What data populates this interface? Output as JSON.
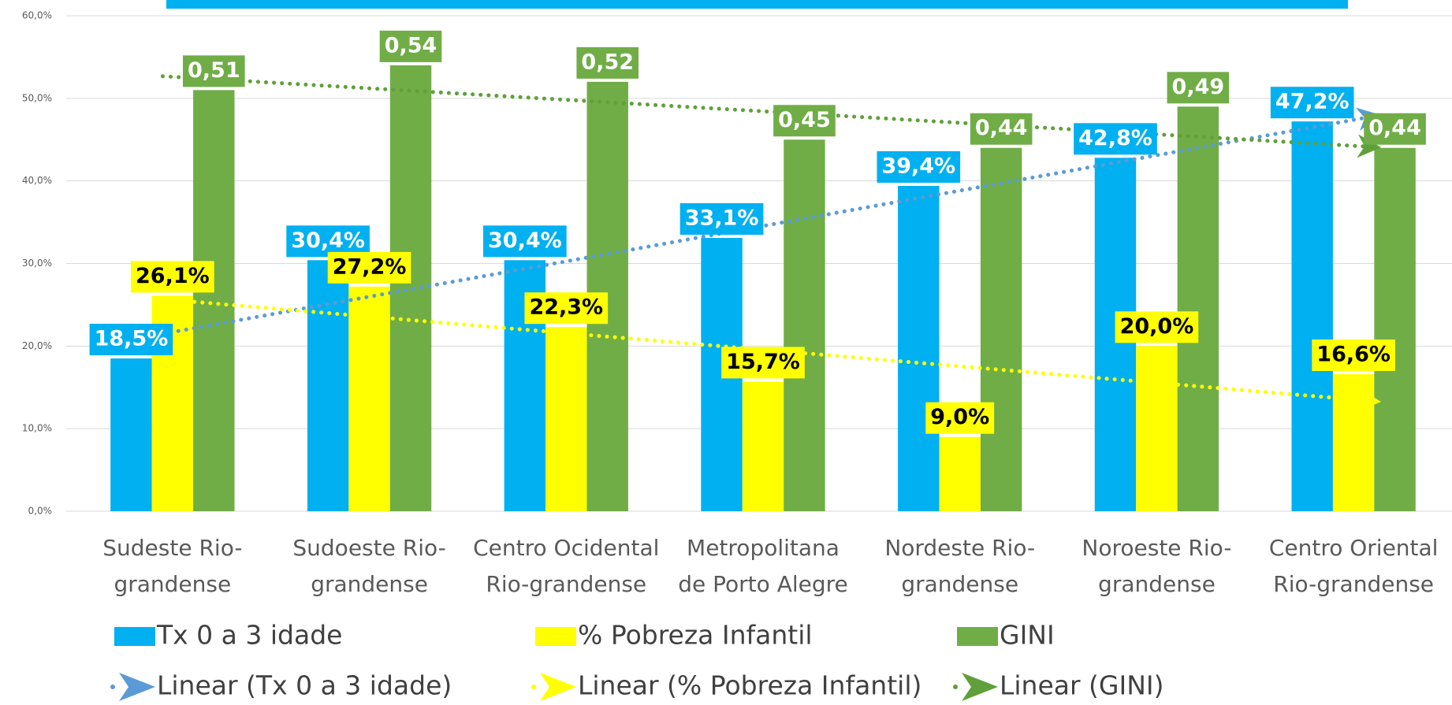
{
  "chart_data": {
    "type": "bar",
    "categories": [
      [
        "Sudeste Rio-",
        "grandense"
      ],
      [
        "Sudoeste Rio-",
        "grandense"
      ],
      [
        "Centro Ocidental",
        "Rio-grandense"
      ],
      [
        "Metropolitana",
        "de Porto Alegre"
      ],
      [
        "Nordeste Rio-",
        "grandense"
      ],
      [
        "Noroeste Rio-",
        "grandense"
      ],
      [
        "Centro Oriental",
        "Rio-grandense"
      ]
    ],
    "series": [
      {
        "name": "Tx 0 a 3 idade",
        "color": "#00b0f0",
        "label_text_color": "#ffffff",
        "values": [
          18.5,
          30.4,
          30.4,
          33.1,
          39.4,
          42.8,
          47.2
        ],
        "value_labels": [
          "18,5%",
          "30,4%",
          "30,4%",
          "33,1%",
          "39,4%",
          "42,8%",
          "47,2%"
        ],
        "trendline": {
          "name": "Linear (Tx 0 a 3 idade)",
          "color": "#5b9bd5"
        }
      },
      {
        "name": "% Pobreza Infantil",
        "color": "#ffff00",
        "label_text_color": "#000000",
        "values": [
          26.1,
          27.2,
          22.3,
          15.7,
          9.0,
          20.0,
          16.6
        ],
        "value_labels": [
          "26,1%",
          "27,2%",
          "22,3%",
          "15,7%",
          "9,0%",
          "20,0%",
          "16,6%"
        ],
        "trendline": {
          "name": "Linear (% Pobreza Infantil)",
          "color": "#ffff00"
        }
      },
      {
        "name": "GINI",
        "color": "#70ad47",
        "label_text_color": "#ffffff",
        "values": [
          51,
          54,
          52,
          45,
          44,
          49,
          44
        ],
        "value_labels": [
          "0,51",
          "0,54",
          "0,52",
          "0,45",
          "0,44",
          "0,49",
          "0,44"
        ],
        "trendline": {
          "name": "Linear (GINI)",
          "color": "#5fa03a"
        }
      }
    ],
    "ylim": [
      0,
      60
    ],
    "yticks": [
      {
        "value": 0,
        "label": "0,0%"
      },
      {
        "value": 10,
        "label": "10,0%"
      },
      {
        "value": 20,
        "label": "20,0%"
      },
      {
        "value": 30,
        "label": "30,0%"
      },
      {
        "value": 40,
        "label": "40,0%"
      },
      {
        "value": 50,
        "label": "50,0%"
      },
      {
        "value": 60,
        "label": "60,0%"
      }
    ],
    "grid": true
  }
}
